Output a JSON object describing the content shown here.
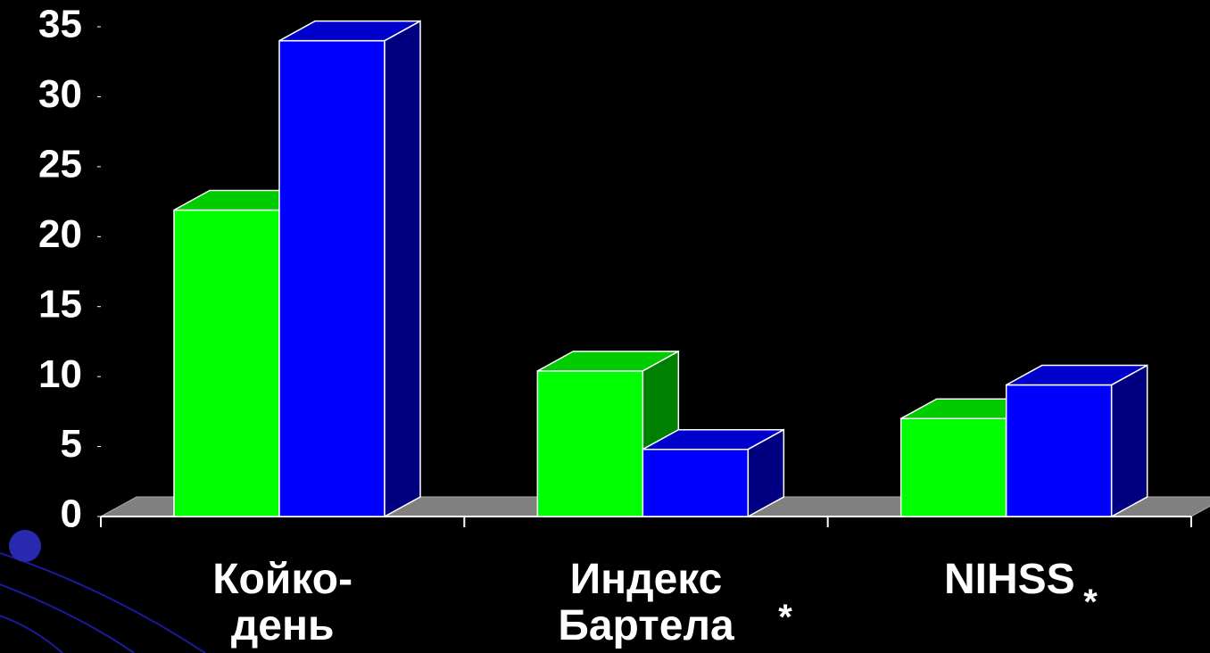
{
  "chart_data": {
    "type": "bar3d",
    "categories": [
      "Койко-\nдень",
      "Индекс\nБартела",
      "NIHSS"
    ],
    "series": [
      {
        "color": "#00ff00",
        "values": [
          21.9,
          10.4,
          7.0
        ]
      },
      {
        "color": "#0000ff",
        "values": [
          34.0,
          4.8,
          9.4
        ]
      }
    ],
    "annotations": [
      "*",
      "*"
    ],
    "ylim": [
      0,
      35
    ],
    "yticks": [
      0,
      5,
      10,
      15,
      20,
      25,
      30,
      35
    ]
  }
}
